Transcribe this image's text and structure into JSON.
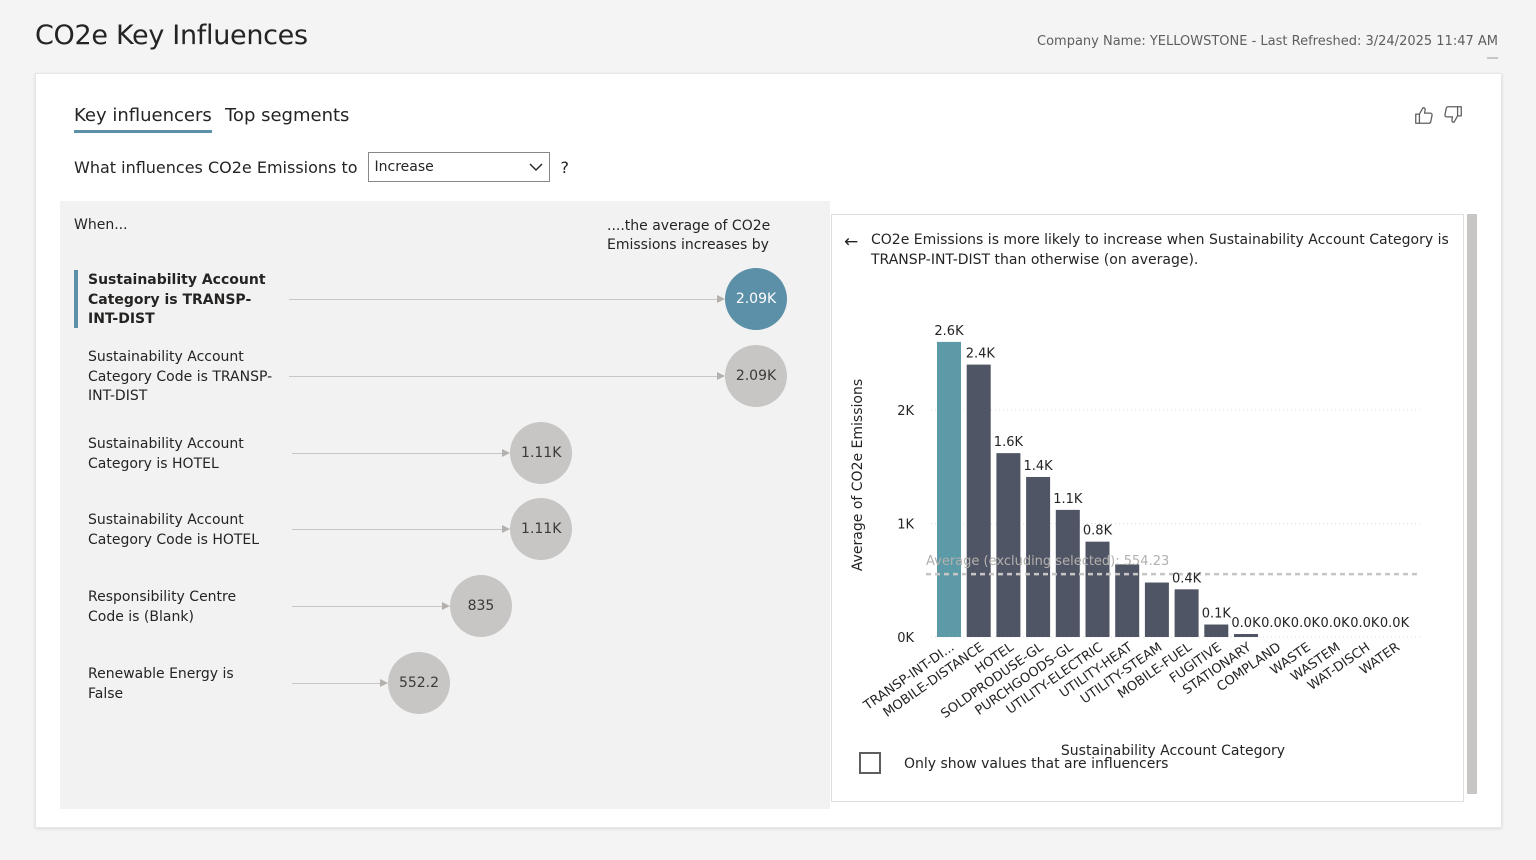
{
  "header": {
    "title": "CO2e Key Influences",
    "company_info": "Company Name: YELLOWSTONE - Last Refreshed: 3/24/2025 11:47 AM"
  },
  "tabs": [
    {
      "label": "Key influencers",
      "active": true
    },
    {
      "label": "Top segments",
      "active": false
    }
  ],
  "feedback": {
    "like_icon": "thumbs-up-icon",
    "dislike_icon": "thumbs-down-icon"
  },
  "question": {
    "prefix": "What influences CO2e Emissions to",
    "selected": "Increase",
    "suffix": "?"
  },
  "influencers_panel": {
    "when_label": "When...",
    "avg_label": "....the average of CO2e Emissions increases by",
    "accent_color": "#5c8fa8",
    "items": [
      {
        "text": "Sustainability Account Category is TRANSP-INT-DIST",
        "value": "2.09K",
        "value_num": 2090,
        "selected": true
      },
      {
        "text": "Sustainability Account Category Code is TRANSP-INT-DIST",
        "value": "2.09K",
        "value_num": 2090,
        "selected": false
      },
      {
        "text": "Sustainability Account Category is HOTEL",
        "value": "1.11K",
        "value_num": 1110,
        "selected": false
      },
      {
        "text": "Sustainability Account Category Code is HOTEL",
        "value": "1.11K",
        "value_num": 1110,
        "selected": false
      },
      {
        "text": "Responsibility Centre Code is (Blank)",
        "value": "835",
        "value_num": 835,
        "selected": false
      },
      {
        "text": "Renewable Energy is False",
        "value": "552.2",
        "value_num": 552.2,
        "selected": false
      }
    ]
  },
  "detail_panel": {
    "back_icon": "back-arrow-icon",
    "explanation": "CO2e Emissions is more likely to increase when Sustainability Account Category is TRANSP-INT-DIST than otherwise (on average).",
    "checkbox_label": "Only show values that are influencers",
    "checkbox_checked": false
  },
  "chart_data": {
    "type": "bar",
    "xlabel": "Sustainability Account Category",
    "ylabel": "Average of CO2e Emissions",
    "ylim": [
      0,
      2600
    ],
    "y_ticks": [
      {
        "value": 0,
        "label": "0K"
      },
      {
        "value": 1000,
        "label": "1K"
      },
      {
        "value": 2000,
        "label": "2K"
      }
    ],
    "grid": true,
    "categories": [
      "TRANSP-INT-DI...",
      "MOBILE-DISTANCE",
      "HOTEL",
      "SOLDPRODUSE-GL",
      "PURCHGOODS-GL",
      "UTILITY-ELECTRIC",
      "UTILITY-HEAT",
      "UTILITY-STEAM",
      "MOBILE-FUEL",
      "FUGITIVE",
      "STATIONARY",
      "COMPLAND",
      "WASTE",
      "WASTEM",
      "WAT-DISCH",
      "WATER"
    ],
    "values": [
      2600,
      2400,
      1620,
      1410,
      1120,
      840,
      640,
      480,
      420,
      110,
      20,
      0,
      0,
      0,
      0,
      0
    ],
    "data_labels": [
      "2.6K",
      "2.4K",
      "1.6K",
      "1.4K",
      "1.1K",
      "0.8K",
      "",
      "",
      "0.4K",
      "0.1K",
      "0.0K",
      "0.0K",
      "0.0K",
      "0.0K",
      "0.0K",
      "0.0K"
    ],
    "highlight_index": 0,
    "highlight_color": "#5c9aa8",
    "bar_color": "#505565",
    "average_line": {
      "value": 554.23,
      "label": "Average (excluding selected): 554.23"
    }
  }
}
